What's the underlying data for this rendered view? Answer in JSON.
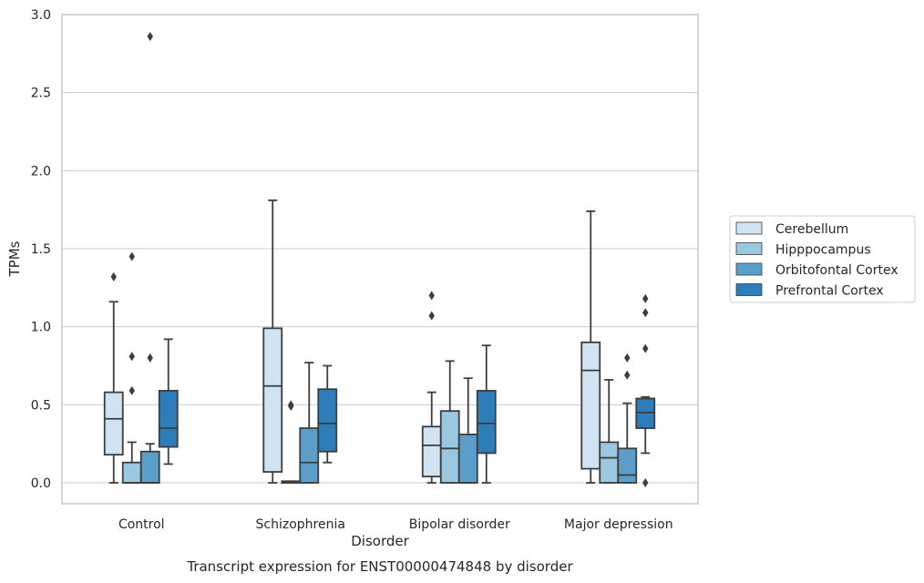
{
  "chart_data": {
    "type": "box",
    "title": "Transcript expression for ENST00000474848 by disorder",
    "xlabel": "Disorder",
    "ylabel": "TPMs",
    "ylim": [
      -0.14,
      3.0
    ],
    "yticks": [
      "0.0",
      "0.5",
      "1.0",
      "1.5",
      "2.0",
      "2.5",
      "3.0"
    ],
    "grid": true,
    "legend_position": "right",
    "categories": [
      "Control",
      "Schizophrenia",
      "Bipolar disorder",
      "Major depression"
    ],
    "series": [
      {
        "name": "Cerebellum",
        "color": "#d1e2f2",
        "boxes": [
          {
            "whislo": 0.0,
            "q1": 0.18,
            "med": 0.41,
            "q3": 0.58,
            "whishi": 1.16,
            "fliers": [
              1.32
            ]
          },
          {
            "whislo": 0.0,
            "q1": 0.07,
            "med": 0.62,
            "q3": 0.99,
            "whishi": 1.81,
            "fliers": []
          },
          {
            "whislo": 0.0,
            "q1": 0.04,
            "med": 0.24,
            "q3": 0.36,
            "whishi": 0.58,
            "fliers": [
              1.07,
              1.2
            ]
          },
          {
            "whislo": 0.0,
            "q1": 0.09,
            "med": 0.72,
            "q3": 0.9,
            "whishi": 1.74,
            "fliers": []
          }
        ]
      },
      {
        "name": "Hipppocampus",
        "color": "#9ac8e0",
        "boxes": [
          {
            "whislo": 0.0,
            "q1": 0.0,
            "med": 0.0,
            "q3": 0.13,
            "whishi": 0.26,
            "fliers": [
              0.59,
              0.81,
              1.45
            ]
          },
          {
            "whislo": 0.0,
            "q1": 0.0,
            "med": 0.0,
            "q3": 0.01,
            "whishi": 0.01,
            "fliers": [
              0.49,
              0.5
            ]
          },
          {
            "whislo": 0.0,
            "q1": 0.0,
            "med": 0.22,
            "q3": 0.46,
            "whishi": 0.78,
            "fliers": []
          },
          {
            "whislo": 0.0,
            "q1": 0.0,
            "med": 0.16,
            "q3": 0.26,
            "whishi": 0.66,
            "fliers": []
          }
        ]
      },
      {
        "name": "Orbitofontal Cortex",
        "color": "#5b9ec9",
        "boxes": [
          {
            "whislo": 0.0,
            "q1": 0.0,
            "med": 0.0,
            "q3": 0.2,
            "whishi": 0.25,
            "fliers": [
              0.8,
              2.86
            ]
          },
          {
            "whislo": 0.0,
            "q1": 0.0,
            "med": 0.13,
            "q3": 0.35,
            "whishi": 0.77,
            "fliers": []
          },
          {
            "whislo": 0.0,
            "q1": 0.0,
            "med": 0.0,
            "q3": 0.31,
            "whishi": 0.67,
            "fliers": []
          },
          {
            "whislo": 0.0,
            "q1": 0.0,
            "med": 0.05,
            "q3": 0.22,
            "whishi": 0.51,
            "fliers": [
              0.69,
              0.8
            ]
          }
        ]
      },
      {
        "name": "Prefrontal Cortex",
        "color": "#2d7dbb",
        "boxes": [
          {
            "whislo": 0.12,
            "q1": 0.23,
            "med": 0.35,
            "q3": 0.59,
            "whishi": 0.92,
            "fliers": []
          },
          {
            "whislo": 0.13,
            "q1": 0.2,
            "med": 0.38,
            "q3": 0.6,
            "whishi": 0.75,
            "fliers": []
          },
          {
            "whislo": 0.0,
            "q1": 0.19,
            "med": 0.38,
            "q3": 0.59,
            "whishi": 0.88,
            "fliers": []
          },
          {
            "whislo": 0.19,
            "q1": 0.35,
            "med": 0.45,
            "q3": 0.54,
            "whishi": 0.55,
            "fliers": [
              0.0,
              0.86,
              1.09,
              1.18
            ]
          }
        ]
      }
    ]
  }
}
